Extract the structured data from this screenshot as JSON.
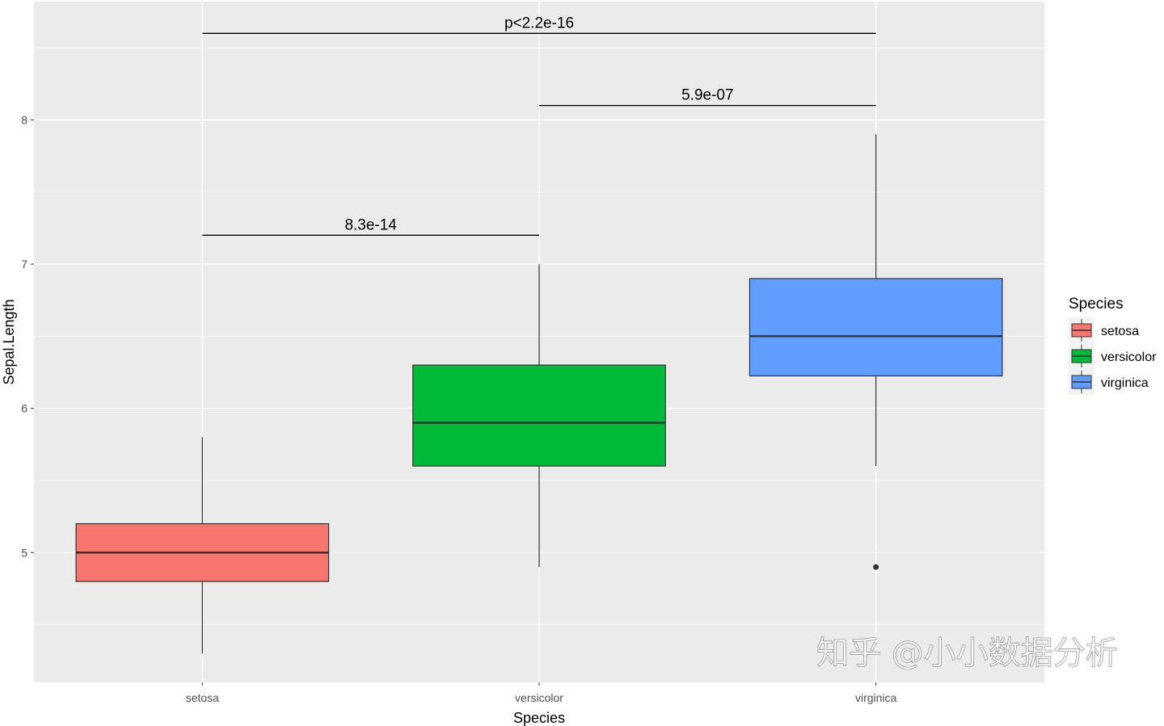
{
  "chart_data": {
    "type": "boxplot",
    "xlabel": "Species",
    "ylabel": "Sepal.Length",
    "categories": [
      "setosa",
      "versicolor",
      "virginica"
    ],
    "ylim": [
      4.1,
      8.82
    ],
    "yticks": [
      5,
      6,
      7,
      8
    ],
    "grid": true,
    "boxes": [
      {
        "name": "setosa",
        "min": 4.3,
        "q1": 4.8,
        "median": 5.0,
        "q3": 5.2,
        "max": 5.8,
        "outliers": [],
        "color": "#F8766D"
      },
      {
        "name": "versicolor",
        "min": 4.9,
        "q1": 5.6,
        "median": 5.9,
        "q3": 6.3,
        "max": 7.0,
        "outliers": [],
        "color": "#00BA38"
      },
      {
        "name": "virginica",
        "min": 5.6,
        "q1": 6.225,
        "median": 6.5,
        "q3": 6.9,
        "max": 7.9,
        "outliers": [
          4.9
        ],
        "color": "#619CFF"
      }
    ],
    "comparisons": [
      {
        "from": "setosa",
        "to": "versicolor",
        "y": 7.2,
        "label": "8.3e-14"
      },
      {
        "from": "versicolor",
        "to": "virginica",
        "y": 8.1,
        "label": "5.9e-07"
      },
      {
        "from": "setosa",
        "to": "virginica",
        "y": 8.6,
        "label": "p<2.2e-16"
      }
    ],
    "legend": {
      "title": "Species",
      "position": "right",
      "items": [
        "setosa",
        "versicolor",
        "virginica"
      ]
    }
  },
  "watermark": "知乎 @小小数据分析"
}
